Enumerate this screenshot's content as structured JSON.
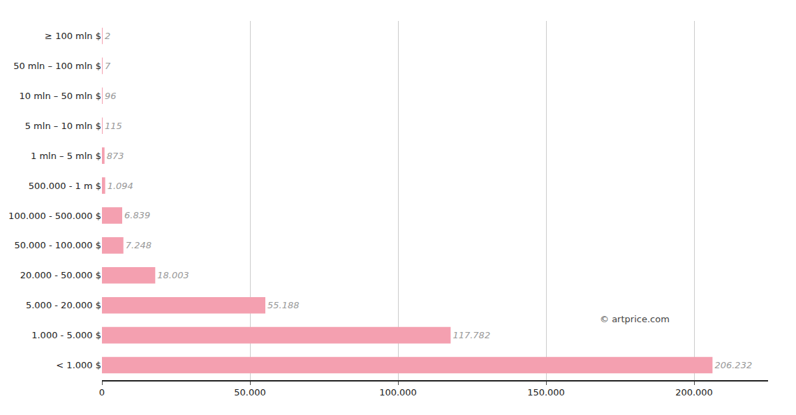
{
  "chart_data": {
    "type": "bar",
    "orientation": "horizontal",
    "categories": [
      "≥ 100 mln $",
      "50 mln – 100 mln $",
      "10 mln – 50 mln $",
      "5 mln – 10 mln $",
      "1 mln – 5 mln $",
      "500.000 - 1 m $",
      "100.000 - 500.000 $",
      "50.000 - 100.000 $",
      "20.000 - 50.000 $",
      "5.000 - 20.000 $",
      "1.000 - 5.000 $",
      "< 1.000 $"
    ],
    "values": [
      2,
      7,
      96,
      115,
      873,
      1094,
      6839,
      7248,
      18003,
      55188,
      117782,
      206232
    ],
    "value_labels": [
      "2",
      "7",
      "96",
      "115",
      "873",
      "1.094",
      "6.839",
      "7.248",
      "18.003",
      "55.188",
      "117.782",
      "206.232"
    ],
    "data_labels": true,
    "color": "#f4a0b0",
    "xlim": [
      0,
      225000
    ],
    "xticks": [
      0,
      {
        "value": 50000,
        "label": "50.000"
      },
      {
        "value": 100000,
        "label": "100.000"
      },
      {
        "value": 150000,
        "label": "150.000"
      },
      {
        "value": 200000,
        "label": "200.000"
      }
    ],
    "grid": true,
    "annotations": [
      "© artprice.com"
    ]
  }
}
